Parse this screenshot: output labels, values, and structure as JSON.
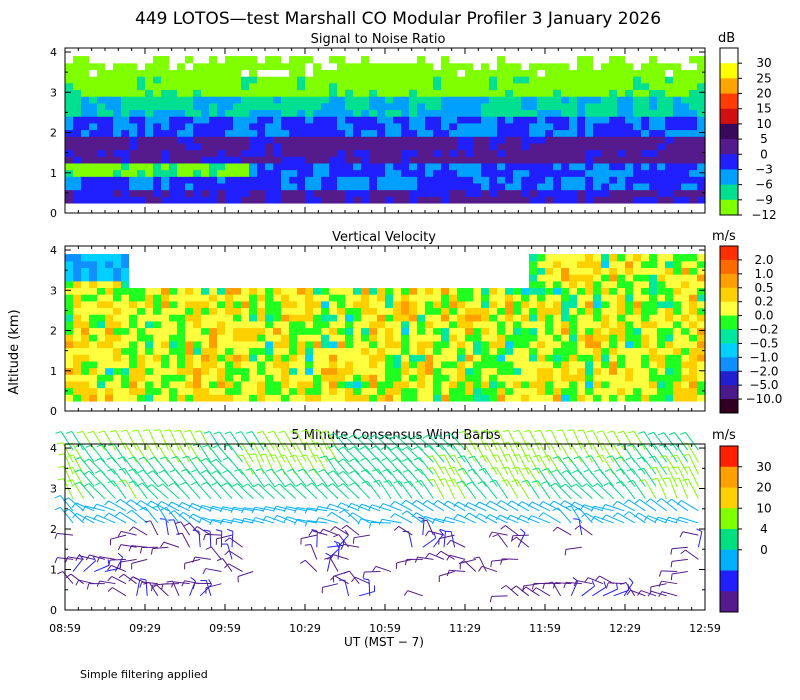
{
  "figure": {
    "title": "449 LOTOS—test Marshall CO Modular Profiler  3 January 2026",
    "footnote": "Simple filtering applied",
    "ylabel": "Altitude (km)",
    "xlabel": "UT  (MST − 7)",
    "x_ticks": [
      "08:59",
      "09:29",
      "09:59",
      "10:29",
      "10:59",
      "11:29",
      "11:59",
      "12:29",
      "12:59"
    ],
    "y_ticks": [
      "0",
      "1",
      "2",
      "3",
      "4"
    ]
  },
  "chart_data": [
    {
      "type": "heatmap",
      "title": "Signal to Noise Ratio",
      "unit": "dB",
      "x_range": [
        "08:59",
        "12:59"
      ],
      "ylim": [
        0,
        4.1
      ],
      "data_range_km": [
        0.25,
        3.9
      ],
      "colorbar": {
        "labels": [
          "30",
          "25",
          "20",
          "15",
          "10",
          "5",
          "0",
          "−3",
          "−6",
          "−9",
          "−12"
        ],
        "colors": [
          "#ffffff",
          "#ffff00",
          "#ffa500",
          "#ff3d00",
          "#d01010",
          "#3a0a5a",
          "#551a8b",
          "#2020ff",
          "#00a0ff",
          "#00e090",
          "#80ff00"
        ]
      }
    },
    {
      "type": "heatmap",
      "title": "Vertical Velocity",
      "unit": "m/s",
      "x_range": [
        "08:59",
        "12:59"
      ],
      "ylim": [
        0,
        4.1
      ],
      "data_range_km": [
        0.25,
        3.9
      ],
      "colorbar": {
        "labels": [
          "2.0",
          "1.0",
          "0.5",
          "0.2",
          "0.0",
          "−0.2",
          "−0.5",
          "−1.0",
          "−2.0",
          "−5.0",
          "−10.0"
        ],
        "colors": [
          "#ff3000",
          "#ff6a00",
          "#ffa000",
          "#ffd000",
          "#ffff40",
          "#20ff20",
          "#00e8a0",
          "#00d0ff",
          "#1090ff",
          "#2020d0",
          "#4a1a8a",
          "#300020"
        ]
      }
    },
    {
      "type": "scatter",
      "title": "5 Minute Consensus Wind Barbs",
      "unit": "m/s",
      "x_range": [
        "08:59",
        "12:59"
      ],
      "ylim": [
        0,
        4.1
      ],
      "colorbar": {
        "labels": [
          "30",
          "20",
          "10",
          "4",
          "0"
        ],
        "colors": [
          "#ff2000",
          "#ffa000",
          "#ffd000",
          "#80ff00",
          "#00e080",
          "#00b0ff",
          "#2020ff",
          "#551a8b"
        ]
      }
    }
  ]
}
